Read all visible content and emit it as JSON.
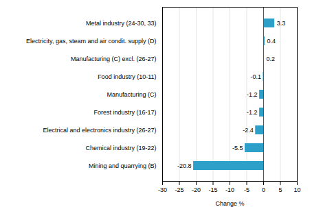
{
  "chart_data": {
    "type": "bar",
    "orientation": "horizontal",
    "categories": [
      "Mining and quarrying (B)",
      "Chemical industry (19-22)",
      "Electrical and electronics industry (26-27)",
      "Forest industry (16-17)",
      "Manufacturing (C)",
      "Food industry (10-11)",
      "Manufacturing (C) excl. (26-27)",
      "Electricity, gas, steam and air condit. supply (D)",
      "Metal industry (24-30, 33)"
    ],
    "values": [
      -20.8,
      -5.5,
      -2.4,
      -1.2,
      -1.2,
      -0.1,
      0.2,
      0.4,
      3.3
    ],
    "color": "#2ca0c8",
    "xlabel": "Change %",
    "xlim": [
      -30,
      10
    ],
    "xticks": [
      -30,
      -25,
      -20,
      -15,
      -10,
      -5,
      0,
      5,
      10
    ],
    "grid": true,
    "data_labels": true
  }
}
